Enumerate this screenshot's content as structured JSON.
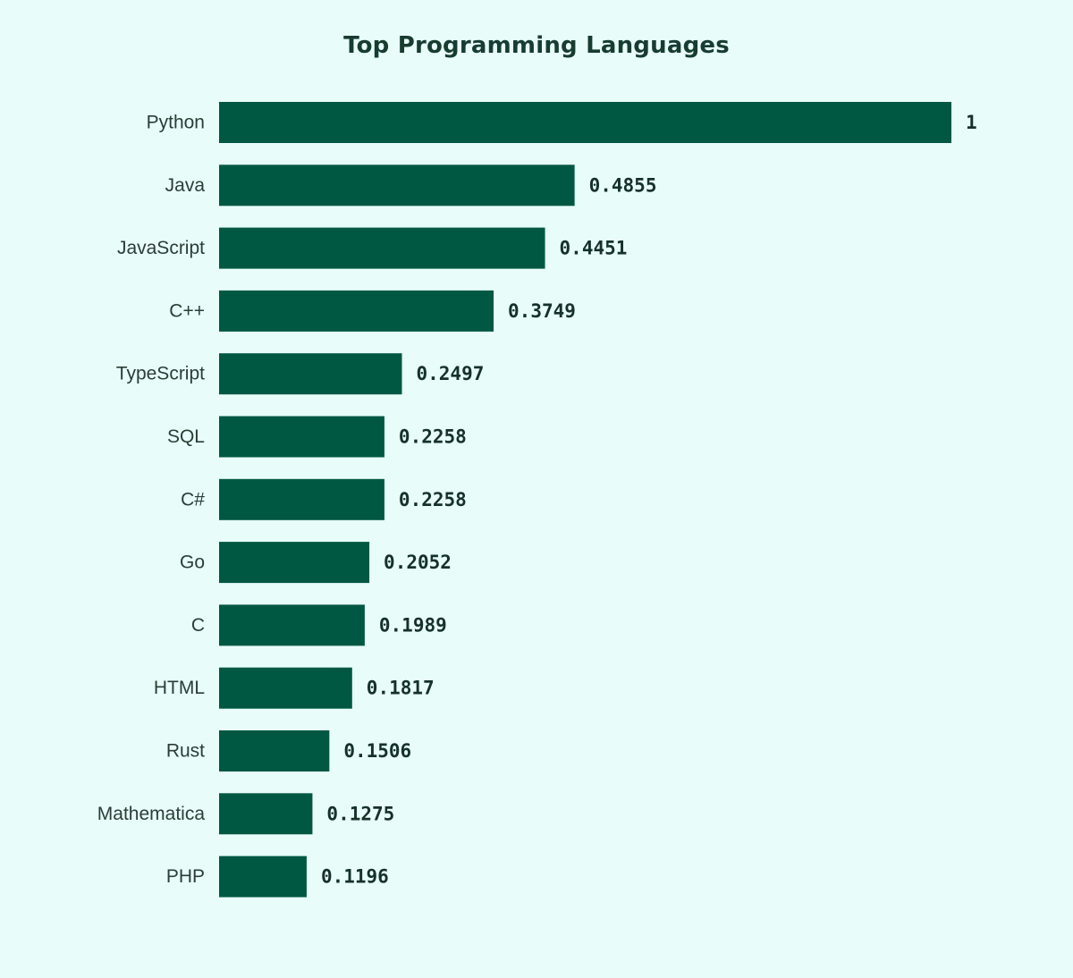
{
  "chart_data": {
    "type": "bar",
    "orientation": "horizontal",
    "title": "Top Programming Languages",
    "xlabel": "",
    "ylabel": "",
    "categories": [
      "Python",
      "Java",
      "JavaScript",
      "C++",
      "TypeScript",
      "SQL",
      "C#",
      "Go",
      "C",
      "HTML",
      "Rust",
      "Mathematica",
      "PHP"
    ],
    "values": [
      1,
      0.4855,
      0.4451,
      0.3749,
      0.2497,
      0.2258,
      0.2258,
      0.2052,
      0.1989,
      0.1817,
      0.1506,
      0.1275,
      0.1196
    ],
    "value_labels": [
      "1",
      "0.4855",
      "0.4451",
      "0.3749",
      "0.2497",
      "0.2258",
      "0.2258",
      "0.2052",
      "0.1989",
      "0.1817",
      "0.1506",
      "0.1275",
      "0.1196"
    ],
    "xlim": [
      0,
      1
    ],
    "grid": false,
    "legend": "none",
    "colors": {
      "bar": "#005843",
      "background": "#e8fdf9",
      "title": "#173c30",
      "category_text": "#2b3d36",
      "value_text": "#15312a"
    }
  }
}
